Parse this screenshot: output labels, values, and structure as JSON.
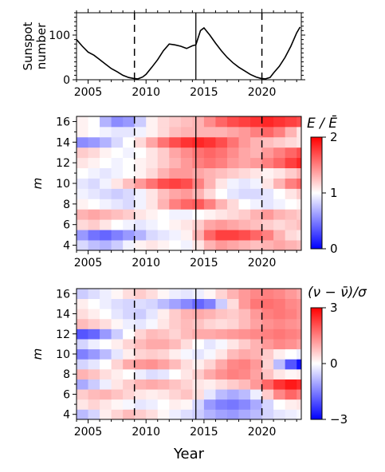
{
  "chart_data": [
    {
      "type": "line",
      "ylabel": "Sunspot\nnumber",
      "xlim": [
        2004,
        2023.4
      ],
      "ylim": [
        0,
        150
      ],
      "xticks": [
        "2005",
        "2010",
        "2015",
        "2020"
      ],
      "yticks": [
        "0",
        "100"
      ],
      "series": [
        {
          "x": [
            2004,
            2004.5,
            2005,
            2005.5,
            2006,
            2006.5,
            2007,
            2007.5,
            2008,
            2008.5,
            2008.9,
            2009.3,
            2009.7,
            2010,
            2010.5,
            2011,
            2011.5,
            2012,
            2012.5,
            2013,
            2013.5,
            2014,
            2014.3,
            2014.7,
            2015,
            2015.5,
            2016,
            2016.5,
            2017,
            2017.5,
            2018,
            2018.5,
            2019,
            2019.5,
            2019.9,
            2020.3,
            2020.7,
            2021,
            2021.5,
            2022,
            2022.5,
            2023,
            2023.3
          ],
          "y": [
            90,
            75,
            62,
            55,
            45,
            35,
            25,
            18,
            10,
            5,
            3,
            2,
            6,
            12,
            28,
            45,
            65,
            80,
            78,
            75,
            70,
            76,
            78,
            110,
            116,
            100,
            82,
            65,
            50,
            38,
            28,
            20,
            12,
            6,
            3,
            2,
            5,
            15,
            30,
            50,
            75,
            105,
            118
          ]
        }
      ],
      "vlines_dashed": [
        2009,
        2020
      ],
      "vline_solid": 2014.3
    },
    {
      "type": "heatmap",
      "xlim": [
        2004,
        2023.4
      ],
      "ylim": [
        3.5,
        16.5
      ],
      "ylabel": "m",
      "xticks": [
        "2005",
        "2010",
        "2015",
        "2020"
      ],
      "yticks": [
        "4",
        "6",
        "8",
        "10",
        "12",
        "14",
        "16"
      ],
      "colorbar_title": "E / Ē",
      "colorbar_ticks": [
        "0",
        "1",
        "2"
      ],
      "vrange": [
        0,
        2
      ],
      "x": [
        2004,
        2005,
        2006,
        2007,
        2008,
        2009,
        2010,
        2011,
        2012,
        2013,
        2014,
        2015,
        2016,
        2017,
        2018,
        2019,
        2020,
        2021,
        2022,
        2023
      ],
      "m": [
        4,
        5,
        6,
        7,
        8,
        9,
        10,
        11,
        12,
        13,
        14,
        15,
        16
      ],
      "values": [
        [
          0.85,
          0.75,
          0.7,
          0.8,
          0.95,
          1.05,
          1.1,
          1.05,
          1.0,
          0.95,
          1.1,
          1.3,
          1.4,
          1.35,
          1.3,
          1.25,
          1.3,
          1.35,
          1.3,
          1.25
        ],
        [
          0.6,
          0.45,
          0.4,
          0.5,
          0.6,
          0.7,
          0.85,
          0.9,
          0.95,
          1.05,
          1.3,
          1.6,
          1.75,
          1.75,
          1.7,
          1.6,
          1.5,
          1.3,
          1.15,
          1.1
        ],
        [
          1.15,
          1.2,
          1.1,
          1.0,
          0.95,
          0.9,
          0.95,
          1.0,
          1.05,
          1.1,
          1.2,
          1.35,
          1.4,
          1.35,
          1.3,
          1.25,
          1.2,
          1.15,
          1.2,
          1.25
        ],
        [
          1.3,
          1.35,
          1.3,
          1.25,
          1.2,
          1.1,
          1.05,
          1.0,
          0.95,
          0.95,
          1.0,
          1.05,
          1.1,
          1.15,
          1.2,
          1.3,
          1.4,
          1.3,
          1.25,
          1.2
        ],
        [
          1.05,
          1.0,
          0.95,
          0.9,
          0.85,
          0.95,
          1.1,
          1.3,
          1.5,
          1.6,
          1.65,
          1.5,
          1.3,
          1.15,
          1.0,
          0.95,
          0.9,
          0.95,
          1.0,
          1.05
        ],
        [
          0.95,
          0.9,
          0.85,
          0.8,
          0.85,
          0.95,
          1.1,
          1.25,
          1.35,
          1.4,
          1.3,
          1.15,
          1.0,
          0.9,
          0.85,
          0.85,
          0.9,
          1.0,
          1.1,
          1.2
        ],
        [
          0.9,
          0.85,
          0.95,
          1.1,
          1.25,
          1.4,
          1.55,
          1.7,
          1.75,
          1.7,
          1.5,
          1.3,
          1.1,
          0.95,
          0.9,
          0.95,
          1.1,
          1.3,
          1.5,
          1.6
        ],
        [
          1.0,
          0.95,
          0.9,
          0.95,
          1.0,
          1.05,
          1.15,
          1.3,
          1.4,
          1.4,
          1.35,
          1.3,
          1.25,
          1.2,
          1.15,
          1.1,
          1.05,
          1.1,
          1.2,
          1.3
        ],
        [
          1.1,
          1.05,
          1.0,
          0.95,
          1.0,
          1.05,
          1.1,
          1.2,
          1.3,
          1.4,
          1.5,
          1.55,
          1.5,
          1.4,
          1.35,
          1.4,
          1.5,
          1.6,
          1.75,
          1.85
        ],
        [
          1.2,
          1.15,
          1.05,
          1.0,
          0.95,
          1.0,
          1.1,
          1.2,
          1.35,
          1.45,
          1.55,
          1.6,
          1.55,
          1.45,
          1.35,
          1.3,
          1.4,
          1.5,
          1.6,
          1.7
        ],
        [
          0.55,
          0.6,
          0.7,
          0.85,
          1.0,
          1.15,
          1.35,
          1.55,
          1.7,
          1.8,
          1.85,
          1.8,
          1.7,
          1.55,
          1.4,
          1.3,
          1.25,
          1.2,
          1.15,
          1.1
        ],
        [
          1.05,
          1.0,
          0.95,
          0.9,
          0.9,
          0.95,
          1.05,
          1.15,
          1.25,
          1.3,
          1.3,
          1.3,
          1.3,
          1.35,
          1.4,
          1.5,
          1.6,
          1.5,
          1.3,
          1.1
        ],
        [
          1.05,
          1.0,
          0.7,
          0.55,
          0.6,
          0.8,
          1.05,
          1.15,
          1.2,
          1.25,
          1.3,
          1.45,
          1.6,
          1.7,
          1.75,
          1.8,
          1.85,
          1.8,
          1.75,
          1.7
        ]
      ],
      "vlines_dashed": [
        2009,
        2020
      ],
      "vline_solid": 2014.3
    },
    {
      "type": "heatmap",
      "xlim": [
        2004,
        2023.4
      ],
      "ylim": [
        3.5,
        16.5
      ],
      "ylabel": "m",
      "xlabel": "Year",
      "xticks": [
        "2005",
        "2010",
        "2015",
        "2020"
      ],
      "yticks": [
        "4",
        "6",
        "8",
        "10",
        "12",
        "14",
        "16"
      ],
      "colorbar_title": "(ν − ν̄)/σ",
      "colorbar_ticks": [
        "3",
        "0",
        "−3"
      ],
      "vrange": [
        -3,
        3
      ],
      "x": [
        2004,
        2005,
        2006,
        2007,
        2008,
        2009,
        2010,
        2011,
        2012,
        2013,
        2014,
        2015,
        2016,
        2017,
        2018,
        2019,
        2020,
        2021,
        2022,
        2023
      ],
      "m": [
        4,
        5,
        6,
        7,
        8,
        9,
        10,
        11,
        12,
        13,
        14,
        15,
        16
      ],
      "values": [
        [
          -0.8,
          -0.5,
          0.2,
          0.5,
          0.8,
          0.6,
          0.4,
          0.1,
          -0.2,
          -0.4,
          -0.6,
          -0.9,
          -1.1,
          -1.2,
          -1.0,
          -0.8,
          -0.5,
          -0.3,
          -0.2,
          -0.1
        ],
        [
          0.3,
          0.5,
          0.3,
          0.1,
          -0.1,
          -0.3,
          -0.2,
          0.0,
          0.2,
          0.1,
          -0.5,
          -1.2,
          -1.5,
          -1.6,
          -1.4,
          -1.0,
          -0.5,
          0.0,
          0.2,
          0.3
        ],
        [
          0.6,
          0.8,
          0.9,
          0.7,
          0.5,
          0.3,
          0.2,
          0.3,
          0.5,
          0.7,
          0.4,
          -0.3,
          -0.8,
          -1.0,
          -0.8,
          -0.2,
          0.6,
          1.4,
          1.8,
          1.5
        ],
        [
          -1.0,
          -0.6,
          -0.2,
          0.3,
          0.6,
          0.9,
          1.0,
          0.9,
          0.7,
          0.5,
          0.3,
          0.2,
          0.4,
          0.6,
          0.8,
          1.2,
          1.8,
          2.4,
          2.7,
          2.5
        ],
        [
          0.9,
          0.7,
          0.4,
          0.2,
          0.0,
          -0.2,
          -0.4,
          -0.3,
          0.0,
          0.3,
          0.6,
          1.0,
          1.3,
          1.5,
          1.4,
          1.1,
          0.7,
          0.3,
          0.1,
          0.2
        ],
        [
          -0.5,
          -0.3,
          0.0,
          0.5,
          1.0,
          1.2,
          1.3,
          1.1,
          0.8,
          0.4,
          0.2,
          0.5,
          1.0,
          1.4,
          1.5,
          1.2,
          0.5,
          -0.8,
          -2.0,
          -2.8
        ],
        [
          -1.5,
          -1.2,
          -0.8,
          -0.3,
          0.2,
          0.5,
          0.6,
          0.5,
          0.2,
          -0.1,
          -0.3,
          -0.1,
          0.3,
          0.8,
          1.0,
          0.9,
          0.6,
          0.2,
          0.0,
          -0.2
        ],
        [
          -0.5,
          -0.2,
          0.0,
          0.2,
          0.5,
          0.8,
          1.0,
          1.0,
          0.8,
          0.4,
          0.0,
          -0.3,
          -0.1,
          0.3,
          0.6,
          0.9,
          1.2,
          1.4,
          1.3,
          1.1
        ],
        [
          -2.0,
          -1.8,
          -1.2,
          -0.6,
          0.0,
          0.5,
          0.8,
          0.7,
          0.5,
          0.8,
          1.0,
          1.0,
          1.1,
          1.2,
          1.3,
          1.4,
          1.5,
          1.6,
          1.5,
          1.4
        ],
        [
          0.8,
          0.6,
          0.4,
          0.1,
          -0.2,
          -0.3,
          -0.1,
          0.3,
          0.6,
          0.8,
          0.7,
          0.5,
          0.4,
          0.5,
          0.8,
          1.1,
          1.3,
          1.4,
          1.3,
          1.2
        ],
        [
          0.4,
          0.2,
          0.0,
          -0.3,
          -0.5,
          -0.6,
          -0.3,
          0.2,
          0.6,
          0.9,
          1.0,
          0.9,
          0.7,
          0.6,
          0.8,
          1.2,
          1.5,
          1.6,
          1.5,
          1.3
        ],
        [
          0.2,
          0.0,
          -0.2,
          -0.4,
          -0.5,
          -0.4,
          -0.5,
          -0.8,
          -1.1,
          -1.4,
          -1.8,
          -1.5,
          -0.6,
          0.4,
          1.2,
          1.6,
          1.7,
          1.6,
          1.4,
          1.3
        ],
        [
          -0.6,
          -0.4,
          -0.2,
          0.1,
          0.4,
          0.6,
          0.4,
          0.1,
          -0.2,
          -0.3,
          -0.2,
          0.1,
          0.5,
          0.9,
          1.2,
          1.4,
          1.5,
          1.4,
          1.2,
          1.0
        ]
      ],
      "vlines_dashed": [
        2009,
        2020
      ],
      "vline_solid": 2014.3
    }
  ]
}
